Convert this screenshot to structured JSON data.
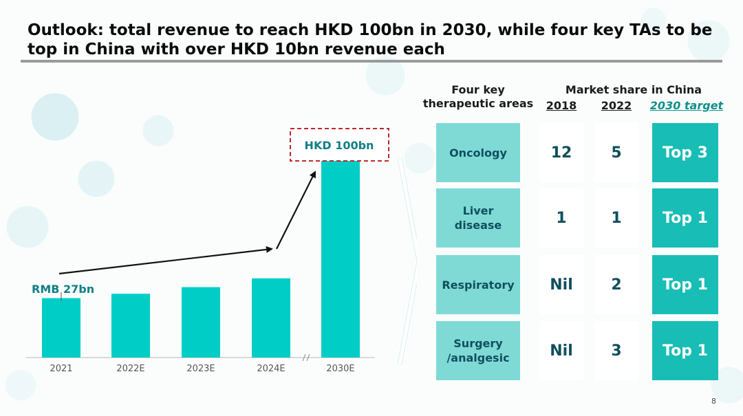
{
  "title": "Outlook: total revenue to reach HKD 100bn in 2030, while four key TAs to be top in China with over HKD 10bn revenue each",
  "page_number": "8",
  "colors": {
    "bar": "#00cec6",
    "area_cell": "#7fdad6",
    "target_cell": "#18bdb5",
    "value_text": "#0f4f5e",
    "label_text": "#0f7f84",
    "callout_border": "#c0262d"
  },
  "chart_data": {
    "type": "bar",
    "categories": [
      "2021",
      "2022E",
      "2023E",
      "2024E",
      "2030E"
    ],
    "values": [
      27,
      29,
      32,
      36,
      90
    ],
    "axis_break_between": [
      "2024E",
      "2030E"
    ],
    "annotations": {
      "first_bar_label": "RMB 27bn",
      "last_bar_label": "HKD 100bn"
    },
    "grid": false,
    "legend": "none",
    "title": "",
    "xlabel": "",
    "ylabel": ""
  },
  "table": {
    "header_area": "Four key therapeutic areas",
    "header_market_share": "Market share in China",
    "header_2018": "2018",
    "header_2022": "2022",
    "header_target": "2030 target",
    "rows": [
      {
        "area": "Oncology",
        "y2018": "12",
        "y2022": "5",
        "target": "Top 3"
      },
      {
        "area": "Liver disease",
        "y2018": "1",
        "y2022": "1",
        "target": "Top 1"
      },
      {
        "area": "Respiratory",
        "y2018": "Nil",
        "y2022": "2",
        "target": "Top 1"
      },
      {
        "area": "Surgery /analgesic",
        "y2018": "Nil",
        "y2022": "3",
        "target": "Top 1"
      }
    ]
  }
}
